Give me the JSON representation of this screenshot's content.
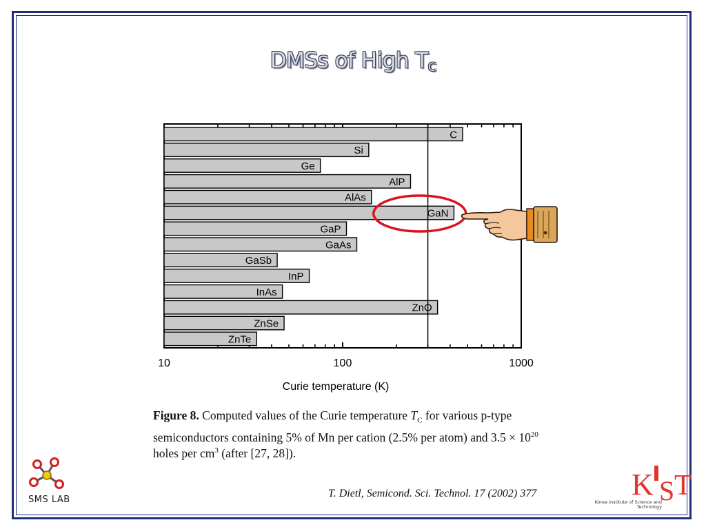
{
  "slide": {
    "title_main": "DMSs of High T",
    "title_sub": "C",
    "caption_label": "Figure 8.",
    "caption_text_1": "Computed values of the Curie temperature",
    "caption_tc": "T",
    "caption_tc_sub": "C",
    "caption_text_2": "for various p-type semiconductors containing 5% of Mn per cation (2.5% per atom) and 3.5 × 10",
    "caption_exp": "20",
    "caption_text_3": "holes per cm",
    "caption_cm_exp": "3",
    "caption_text_4": "(after [27, 28]).",
    "citation": "T. Dietl, Semicond. Sci. Technol. 17 (2002) 377",
    "sms_logo_text": "SMS LAB",
    "kist_logo_text": "KIST",
    "kist_subtitle": "Korea Institute of Science and Technology"
  },
  "colors": {
    "frame": "#1f2f7a",
    "bar_fill": "#c8c8c8",
    "bar_stroke": "#000000",
    "highlight_circle": "#d8141e",
    "kist_red": "#e0352b"
  },
  "icons": {
    "pointing_hand": "pointing-hand-icon",
    "sms_molecule": "molecule-logo-icon",
    "kist": "kist-logo-icon"
  },
  "chart_data": {
    "type": "bar",
    "orientation": "horizontal",
    "xscale": "log",
    "xlabel": "Curie temperature (K)",
    "xlim": [
      10,
      1000
    ],
    "xticks": [
      10,
      100,
      1000
    ],
    "xtick_labels": [
      "10",
      "100",
      "1000"
    ],
    "reference_line_x": 300,
    "categories": [
      "C",
      "Si",
      "Ge",
      "AlP",
      "AlAs",
      "GaN",
      "GaP",
      "GaAs",
      "GaSb",
      "InP",
      "InAs",
      "ZnO",
      "ZnSe",
      "ZnTe"
    ],
    "values": [
      470,
      140,
      75,
      240,
      145,
      420,
      105,
      120,
      43,
      65,
      46,
      340,
      47,
      33
    ],
    "highlighted": "GaN"
  }
}
